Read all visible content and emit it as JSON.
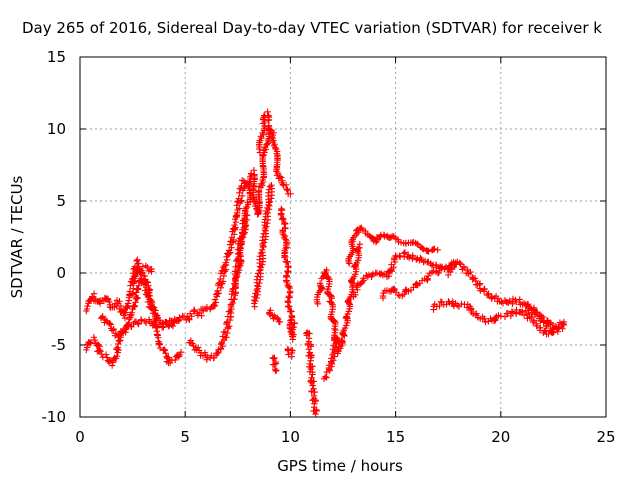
{
  "chart_data": {
    "type": "scatter",
    "title": "Day 265 of 2016, Sidereal Day-to-day VTEC variation (SDTVAR) for receiver k",
    "xlabel": "GPS time / hours",
    "ylabel": "SDTVAR / TECUs",
    "xlim": [
      0,
      25
    ],
    "ylim": [
      -10,
      15
    ],
    "xticks": [
      0,
      5,
      10,
      15,
      20,
      25
    ],
    "yticks": [
      -10,
      -5,
      0,
      5,
      10,
      15
    ],
    "xtick_labels": [
      "0",
      "5",
      "10",
      "15",
      "20",
      "25"
    ],
    "ytick_labels": [
      "-10",
      "-5",
      "0",
      "5",
      "10",
      "15"
    ],
    "grid": true,
    "marker": "+",
    "color": "#ff0000",
    "series": [
      {
        "x": [
          0.3,
          0.6,
          0.9,
          1.2,
          1.5,
          1.8,
          2.1,
          2.4,
          2.7,
          3.0,
          3.3,
          3.6,
          3.9,
          4.2,
          4.5,
          4.8,
          5.1,
          5.4,
          5.7,
          6.0,
          6.3,
          6.6,
          6.9,
          7.2,
          7.5,
          7.8,
          8.0
        ],
        "y": [
          -2.5,
          -1.5,
          -2.2,
          -1.6,
          -2.4,
          -2.0,
          -3.0,
          -1.5,
          0.8,
          -0.5,
          -2.0,
          -3.0,
          -3.4,
          -3.6,
          -3.5,
          -3.0,
          -3.2,
          -2.7,
          -2.9,
          -2.3,
          -2.5,
          -1.2,
          0.6,
          2.0,
          4.5,
          6.5,
          6.0
        ]
      },
      {
        "x": [
          0.3,
          0.6,
          0.9,
          1.2,
          1.5,
          1.8,
          2.1,
          2.4,
          2.7,
          3.0,
          3.3,
          3.6,
          3.9,
          4.2,
          4.5,
          4.8
        ],
        "y": [
          -5.2,
          -4.6,
          -5.3,
          -5.8,
          -6.3,
          -5.4,
          -4.0,
          -3.0,
          -1.5,
          -0.3,
          -1.3,
          -3.4,
          -5.3,
          -6.2,
          -6.0,
          -5.5
        ]
      },
      {
        "x": [
          1.0,
          1.4,
          1.8,
          2.2,
          2.6,
          3.0,
          3.3,
          3.6,
          3.9,
          4.2,
          4.5
        ],
        "y": [
          -3.0,
          -3.6,
          -4.4,
          -3.8,
          -3.5,
          -3.3,
          -3.4,
          -3.6,
          -3.7,
          -3.5,
          -3.2
        ]
      },
      {
        "x": [
          2.5,
          2.8,
          3.1,
          3.4
        ],
        "y": [
          -0.5,
          0.1,
          0.4,
          0.1
        ]
      },
      {
        "x": [
          5.2,
          5.5,
          5.8,
          6.1,
          6.4,
          6.7,
          7.0,
          7.3,
          7.6,
          7.9
        ],
        "y": [
          -4.7,
          -5.2,
          -5.6,
          -5.9,
          -5.8,
          -5.2,
          -3.8,
          -1.5,
          2.0,
          4.0
        ]
      },
      {
        "x": [
          7.4,
          7.6,
          7.8,
          8.0,
          8.2,
          8.4,
          8.6,
          8.8,
          9.0,
          9.2,
          9.4,
          9.6,
          9.8,
          10.0
        ],
        "y": [
          -1.2,
          1.0,
          3.0,
          5.0,
          7.0,
          4.0,
          6.0,
          8.5,
          10.2,
          9.5,
          7.0,
          6.5,
          6.0,
          5.5
        ]
      },
      {
        "x": [
          8.3,
          8.5,
          8.7,
          8.9,
          9.1
        ],
        "y": [
          -2.2,
          -0.3,
          1.8,
          4.2,
          6.1
        ]
      },
      {
        "x": [
          8.55,
          8.65,
          8.75,
          8.85,
          8.95
        ],
        "y": [
          8.5,
          9.6,
          10.5,
          11.1,
          10.6
        ]
      },
      {
        "x": [
          9.0,
          9.1,
          9.3,
          9.5
        ],
        "y": [
          -2.6,
          -3.0,
          -3.1,
          -3.4
        ]
      },
      {
        "x": [
          9.6,
          9.7,
          9.8,
          9.9,
          10.0,
          10.1,
          10.2
        ],
        "y": [
          4.5,
          3.0,
          1.0,
          -1.0,
          -3.0,
          -4.5,
          -3.5
        ]
      },
      {
        "x": [
          9.2,
          9.3
        ],
        "y": [
          -5.8,
          -6.8
        ]
      },
      {
        "x": [
          9.9,
          10.0,
          10.1
        ],
        "y": [
          -5.2,
          -5.7,
          -5.4
        ]
      },
      {
        "x": [
          10.8,
          10.9,
          11.0,
          11.1,
          11.2
        ],
        "y": [
          -4.0,
          -5.0,
          -7.0,
          -8.5,
          -9.8
        ]
      },
      {
        "x": [
          11.3,
          11.5,
          11.7,
          11.9,
          12.1,
          12.3,
          12.5,
          12.7,
          12.9,
          13.1,
          13.3
        ],
        "y": [
          -2.0,
          -0.5,
          0.3,
          -2.0,
          -4.0,
          -5.5,
          -4.5,
          -3.0,
          -1.0,
          0.5,
          2.0
        ]
      },
      {
        "x": [
          11.6,
          11.8,
          12.0,
          12.2
        ],
        "y": [
          -7.2,
          -7.0,
          -6.0,
          -4.5
        ]
      },
      {
        "x": [
          12.8,
          13.0,
          13.2,
          13.4,
          13.6,
          13.8,
          14.0,
          14.2,
          14.4,
          14.6,
          14.8,
          15.0,
          15.2,
          15.5,
          15.8,
          16.1,
          16.4,
          16.7,
          17.0
        ],
        "y": [
          0.8,
          2.2,
          2.8,
          3.1,
          2.9,
          2.5,
          2.0,
          2.5,
          2.8,
          2.6,
          2.3,
          2.5,
          2.3,
          2.1,
          2.0,
          1.8,
          1.7,
          1.6,
          1.6
        ]
      },
      {
        "x": [
          13.0,
          13.4,
          13.8,
          14.2,
          14.6,
          15.0,
          15.4,
          15.8,
          16.2,
          16.6,
          17.0,
          17.4,
          17.8
        ],
        "y": [
          -1.5,
          -0.5,
          -0.2,
          -0.1,
          -0.3,
          1.0,
          1.3,
          1.1,
          1.0,
          0.8,
          0.5,
          0.4,
          0.6
        ]
      },
      {
        "x": [
          14.4,
          14.8,
          15.2,
          15.6,
          16.0,
          16.4,
          16.8,
          17.2,
          17.6
        ],
        "y": [
          -1.6,
          -1.0,
          -1.5,
          -1.2,
          -0.8,
          -0.5,
          0.0,
          0.3,
          0.5
        ]
      },
      {
        "x": [
          17.5,
          17.9,
          18.3,
          18.7,
          19.1,
          19.5,
          19.9,
          20.3,
          20.7,
          21.1,
          21.5,
          21.9,
          22.3,
          22.7,
          23.0
        ],
        "y": [
          0.0,
          0.8,
          0.3,
          -0.4,
          -1.1,
          -1.6,
          -1.9,
          -2.1,
          -1.9,
          -2.1,
          -2.6,
          -3.1,
          -3.5,
          -3.8,
          -3.4
        ]
      },
      {
        "x": [
          16.8,
          17.2,
          17.6,
          18.0,
          18.4,
          18.8,
          19.2,
          19.6,
          20.0
        ],
        "y": [
          -2.4,
          -2.1,
          -2.1,
          -2.2,
          -2.3,
          -2.8,
          -3.3,
          -3.3,
          -3.0
        ]
      },
      {
        "x": [
          20.2,
          20.6,
          21.0,
          21.4,
          21.8,
          22.2,
          22.6,
          23.0
        ],
        "y": [
          -2.9,
          -2.8,
          -2.6,
          -3.1,
          -3.8,
          -4.2,
          -4.0,
          -3.6
        ]
      },
      {
        "x": [
          21.3,
          21.6,
          21.9,
          22.2,
          22.5
        ],
        "y": [
          -2.2,
          -2.6,
          -3.1,
          -3.6,
          -4.1
        ]
      }
    ]
  }
}
